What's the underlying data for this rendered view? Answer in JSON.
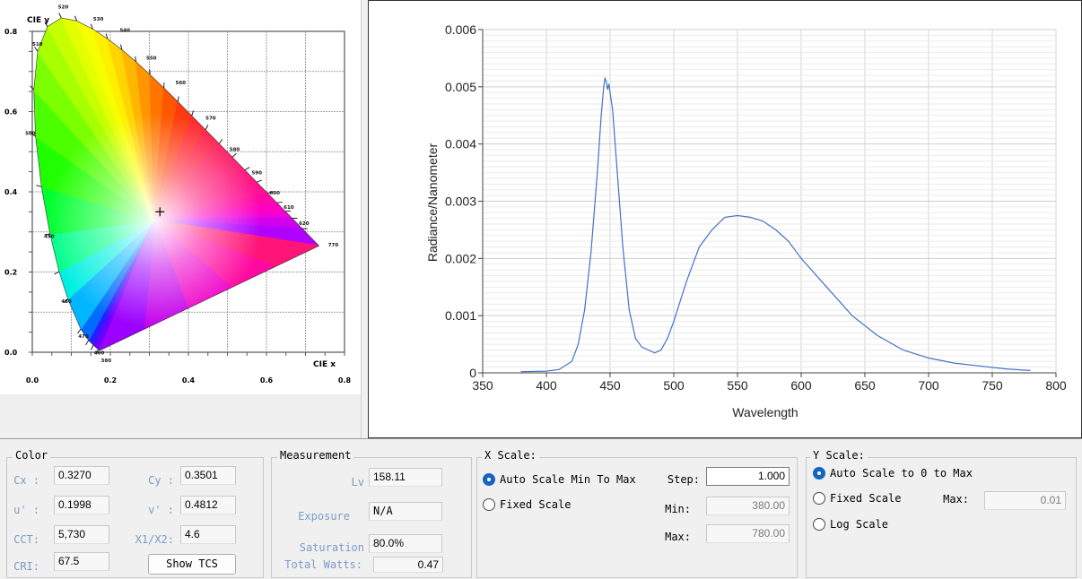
{
  "cie": {
    "y_axis_label": "CIE y",
    "x_axis_label": "CIE x",
    "x_ticks": [
      "0.0",
      "0.2",
      "0.4",
      "0.6",
      "0.8"
    ],
    "y_ticks": [
      "0.0",
      "0.2",
      "0.4",
      "0.6",
      "0.8"
    ],
    "wavelength_labels": [
      "380",
      "460",
      "470",
      "480",
      "490",
      "500",
      "510",
      "520",
      "530",
      "540",
      "550",
      "560",
      "570",
      "580",
      "590",
      "600",
      "610",
      "620",
      "770"
    ],
    "marker": {
      "x": 0.327,
      "y": 0.3501
    }
  },
  "chart_data": {
    "type": "line",
    "title": "",
    "xlabel": "Wavelength",
    "ylabel": "Radiance/Nanometer",
    "xlim": [
      350,
      800
    ],
    "ylim": [
      0,
      0.006
    ],
    "x_ticks": [
      "350",
      "400",
      "450",
      "500",
      "550",
      "600",
      "650",
      "700",
      "750",
      "800"
    ],
    "y_ticks": [
      "0",
      "0.001",
      "0.002",
      "0.003",
      "0.004",
      "0.005",
      "0.006"
    ],
    "grid": true,
    "line_color": "#4472c4",
    "series": [
      {
        "x": [
          380,
          400,
          410,
          420,
          425,
          430,
          435,
          440,
          443,
          445,
          446,
          447,
          448,
          449,
          450,
          452,
          455,
          460,
          465,
          470,
          475,
          480,
          485,
          490,
          495,
          500,
          510,
          520,
          530,
          540,
          550,
          560,
          570,
          580,
          590,
          600,
          620,
          640,
          660,
          680,
          700,
          720,
          740,
          760,
          780
        ],
        "y": [
          2e-05,
          3e-05,
          6e-05,
          0.0002,
          0.0005,
          0.0011,
          0.0021,
          0.0035,
          0.0045,
          0.005,
          0.00515,
          0.0051,
          0.00495,
          0.00505,
          0.0049,
          0.0046,
          0.0037,
          0.0022,
          0.0011,
          0.0006,
          0.00045,
          0.0004,
          0.00035,
          0.0004,
          0.0006,
          0.0009,
          0.0016,
          0.0022,
          0.0025,
          0.00272,
          0.00275,
          0.00272,
          0.00265,
          0.0025,
          0.0023,
          0.002,
          0.0015,
          0.001,
          0.00065,
          0.0004,
          0.00026,
          0.00017,
          0.00012,
          7e-05,
          4e-05
        ]
      }
    ]
  },
  "color": {
    "title": "Color",
    "cx_label": "Cx :",
    "cx": "0.3270",
    "cy_label": "Cy :",
    "cy": "0.3501",
    "u_label": "u' :",
    "u": "0.1998",
    "v_label": "v' :",
    "v": "0.4812",
    "cct_label": "CCT:",
    "cct": "5,730",
    "x1x2_label": "X1/X2:",
    "x1x2": "4.6",
    "cri_label": "CRI:",
    "cri": "67.5",
    "show_tcs": "Show TCS"
  },
  "measurement": {
    "title": "Measurement",
    "lv_label": "Lv",
    "lv": "158.11",
    "exposure_label": "Exposure",
    "exposure": "N/A",
    "saturation_label": "Saturation",
    "saturation": "80.0%",
    "total_watts_label": "Total Watts:",
    "total_watts": "0.47"
  },
  "xscale": {
    "title": "X Scale:",
    "auto_label": "Auto Scale Min To Max",
    "fixed_label": "Fixed Scale",
    "selected": "auto",
    "step_label": "Step:",
    "step": "1.000",
    "min_label": "Min:",
    "min": "380.00",
    "max_label": "Max:",
    "max": "780.00"
  },
  "yscale": {
    "title": "Y Scale:",
    "auto_label": "Auto Scale to 0 to Max",
    "fixed_label": "Fixed Scale",
    "log_label": "Log Scale",
    "selected": "auto",
    "max_label": "Max:",
    "max": "0.01"
  }
}
